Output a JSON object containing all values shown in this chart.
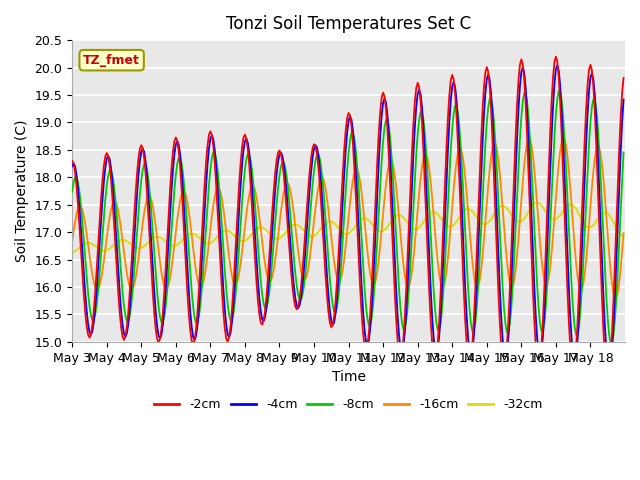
{
  "title": "Tonzi Soil Temperatures Set C",
  "xlabel": "Time",
  "ylabel": "Soil Temperature (C)",
  "ylim": [
    15.0,
    20.5
  ],
  "yticks": [
    15.0,
    15.5,
    16.0,
    16.5,
    17.0,
    17.5,
    18.0,
    18.5,
    19.0,
    19.5,
    20.0,
    20.5
  ],
  "xtick_labels": [
    "May 3",
    "May 4",
    "May 5",
    "May 6",
    "May 7",
    "May 8",
    "May 9",
    "May 10",
    "May 11",
    "May 12",
    "May 13",
    "May 14",
    "May 15",
    "May 16",
    "May 17",
    "May 18"
  ],
  "legend_label": "TZ_fmet",
  "series_labels": [
    "-2cm",
    "-4cm",
    "-8cm",
    "-16cm",
    "-32cm"
  ],
  "series_colors": [
    "#ff0000",
    "#0000ff",
    "#00cc00",
    "#ff8800",
    "#dddd00"
  ],
  "bg_color": "#e8e8e8",
  "grid_color": "#ffffff",
  "title_fontsize": 12,
  "axis_fontsize": 10,
  "tick_fontsize": 9,
  "annotation_facecolor": "#ffffcc",
  "annotation_edgecolor": "#999900",
  "annotation_textcolor": "#cc0000"
}
